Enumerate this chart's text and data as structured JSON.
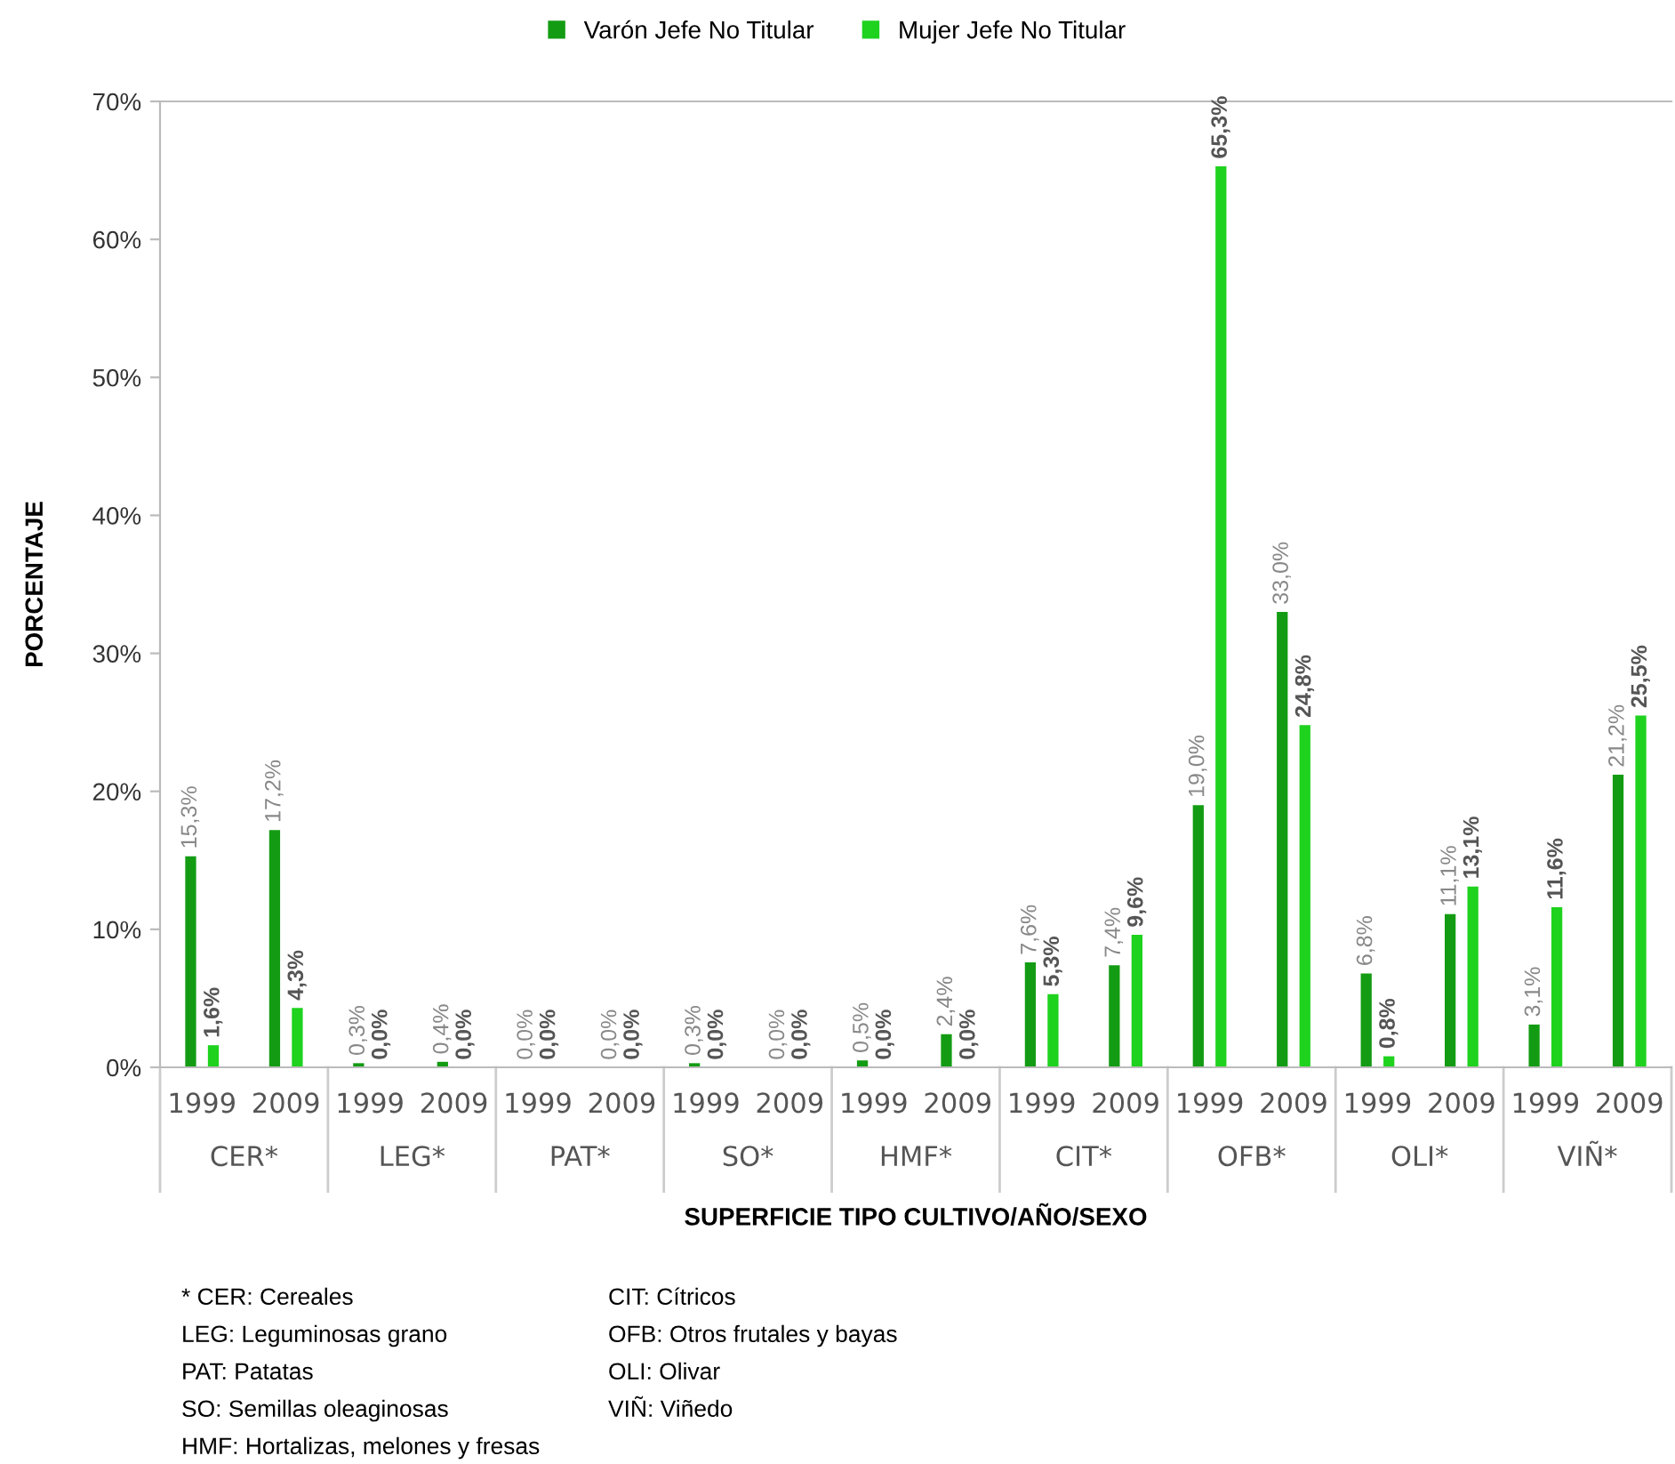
{
  "chart_data": {
    "type": "bar",
    "xlabel": "SUPERFICIE TIPO CULTIVO/AÑO/SEXO",
    "ylabel": "PORCENTAJE",
    "categories": [
      "1999",
      "2009",
      "1999",
      "2009",
      "1999",
      "2009",
      "1999",
      "2009",
      "1999",
      "2009",
      "1999",
      "2009",
      "1999",
      "2009",
      "1999",
      "2009",
      "1999",
      "2009"
    ],
    "series": [
      {
        "name": "Varón Jefe No Titular",
        "color": "#139c13",
        "values": [
          15.3,
          17.2,
          0.3,
          0.4,
          0.0,
          0.0,
          0.3,
          0.0,
          0.5,
          2.4,
          7.6,
          7.4,
          19.0,
          33.0,
          6.8,
          11.1,
          3.1,
          21.2
        ],
        "value_labels": [
          "15,3%",
          "17,2%",
          "0,3%",
          "0,4%",
          "0,0%",
          "0,0%",
          "0,3%",
          "0,0%",
          "0,5%",
          "2,4%",
          "7,6%",
          "7,4%",
          "19,0%",
          "33,0%",
          "6,8%",
          "11,1%",
          "3,1%",
          "21,2%"
        ]
      },
      {
        "name": "Mujer Jefe No Titular",
        "color": "#1ed21e",
        "values": [
          1.6,
          4.3,
          0.0,
          0.0,
          0.0,
          0.0,
          0.0,
          0.0,
          0.0,
          0.0,
          5.3,
          9.6,
          65.3,
          24.8,
          0.8,
          13.1,
          11.6,
          25.5
        ],
        "value_labels": [
          "1,6%",
          "4,3%",
          "0,0%",
          "0,0%",
          "0,0%",
          "0,0%",
          "0,0%",
          "0,0%",
          "0,0%",
          "0,0%",
          "5,3%",
          "9,6%",
          "65,3%",
          "24,8%",
          "0,8%",
          "13,1%",
          "11,6%",
          "25,5%"
        ]
      }
    ],
    "ylim": [
      0,
      70
    ],
    "yticks": [
      {
        "value": 0,
        "label": "0%"
      },
      {
        "value": 10,
        "label": "10%"
      },
      {
        "value": 20,
        "label": "20%"
      },
      {
        "value": 30,
        "label": "30%"
      },
      {
        "value": 40,
        "label": "40%"
      },
      {
        "value": 50,
        "label": "50%"
      },
      {
        "value": 60,
        "label": "60%"
      },
      {
        "value": 70,
        "label": "70%"
      }
    ],
    "grid": false,
    "legend": "top",
    "annotations": [
      "CER*",
      "LEG*",
      "PAT*",
      "SO*",
      "HMF*",
      "CIT*",
      "OFB*",
      "OLI*",
      "VIÑ*",
      "* CER: Cereales",
      "LEG: Leguminosas grano",
      "PAT: Patatas",
      "SO: Semillas oleaginosas",
      "HMF: Hortalizas, melones y fresas",
      "CIT: Cítricos",
      "OFB: Otros frutales y bayas",
      "OLI: Olivar",
      "VIÑ: Viñedo"
    ]
  }
}
